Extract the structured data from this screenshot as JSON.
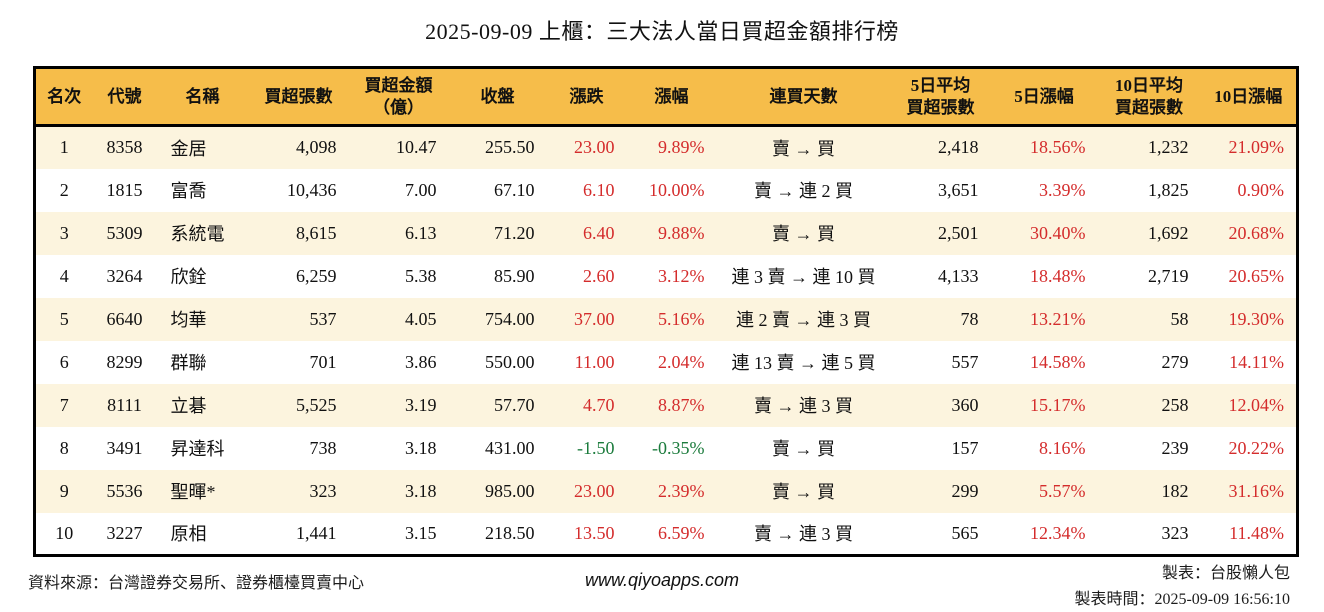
{
  "title": "2025-09-09 上櫃：三大法人當日買超金額排行榜",
  "colors": {
    "header_bg": "#F6BD4A",
    "row_alt_bg": "#FCF4DE",
    "up_red": "#D42C2C",
    "down_green": "#1B7B3C",
    "border": "#000000"
  },
  "chart_data": {
    "type": "table",
    "title": "2025-09-09 上櫃：三大法人當日買超金額排行榜",
    "columns": [
      "名次",
      "代號",
      "名稱",
      "買超張數",
      "買超金額\n（億）",
      "收盤",
      "漲跌",
      "漲幅",
      "連買天數",
      "5日平均\n買超張數",
      "5日漲幅",
      "10日平均\n買超張數",
      "10日漲幅"
    ],
    "rows": [
      {
        "rank": "1",
        "code": "8358",
        "name": "金居",
        "volume": "4,098",
        "amount": "10.47",
        "close": "255.50",
        "change": "23.00",
        "change_pct": "9.89%",
        "trend": "up",
        "streak": "賣 → 買",
        "avg5": "2,418",
        "pct5": "18.56%",
        "trend5": "up",
        "avg10": "1,232",
        "pct10": "21.09%",
        "trend10": "up"
      },
      {
        "rank": "2",
        "code": "1815",
        "name": "富喬",
        "volume": "10,436",
        "amount": "7.00",
        "close": "67.10",
        "change": "6.10",
        "change_pct": "10.00%",
        "trend": "up",
        "streak": "賣 → 連 2 買",
        "avg5": "3,651",
        "pct5": "3.39%",
        "trend5": "up",
        "avg10": "1,825",
        "pct10": "0.90%",
        "trend10": "up"
      },
      {
        "rank": "3",
        "code": "5309",
        "name": "系統電",
        "volume": "8,615",
        "amount": "6.13",
        "close": "71.20",
        "change": "6.40",
        "change_pct": "9.88%",
        "trend": "up",
        "streak": "賣 → 買",
        "avg5": "2,501",
        "pct5": "30.40%",
        "trend5": "up",
        "avg10": "1,692",
        "pct10": "20.68%",
        "trend10": "up"
      },
      {
        "rank": "4",
        "code": "3264",
        "name": "欣銓",
        "volume": "6,259",
        "amount": "5.38",
        "close": "85.90",
        "change": "2.60",
        "change_pct": "3.12%",
        "trend": "up",
        "streak": "連 3 賣 → 連 10 買",
        "avg5": "4,133",
        "pct5": "18.48%",
        "trend5": "up",
        "avg10": "2,719",
        "pct10": "20.65%",
        "trend10": "up"
      },
      {
        "rank": "5",
        "code": "6640",
        "name": "均華",
        "volume": "537",
        "amount": "4.05",
        "close": "754.00",
        "change": "37.00",
        "change_pct": "5.16%",
        "trend": "up",
        "streak": "連 2 賣 → 連 3 買",
        "avg5": "78",
        "pct5": "13.21%",
        "trend5": "up",
        "avg10": "58",
        "pct10": "19.30%",
        "trend10": "up"
      },
      {
        "rank": "6",
        "code": "8299",
        "name": "群聯",
        "volume": "701",
        "amount": "3.86",
        "close": "550.00",
        "change": "11.00",
        "change_pct": "2.04%",
        "trend": "up",
        "streak": "連 13 賣 → 連 5 買",
        "avg5": "557",
        "pct5": "14.58%",
        "trend5": "up",
        "avg10": "279",
        "pct10": "14.11%",
        "trend10": "up"
      },
      {
        "rank": "7",
        "code": "8111",
        "name": "立碁",
        "volume": "5,525",
        "amount": "3.19",
        "close": "57.70",
        "change": "4.70",
        "change_pct": "8.87%",
        "trend": "up",
        "streak": "賣 → 連 3 買",
        "avg5": "360",
        "pct5": "15.17%",
        "trend5": "up",
        "avg10": "258",
        "pct10": "12.04%",
        "trend10": "up"
      },
      {
        "rank": "8",
        "code": "3491",
        "name": "昇達科",
        "volume": "738",
        "amount": "3.18",
        "close": "431.00",
        "change": "-1.50",
        "change_pct": "-0.35%",
        "trend": "down",
        "streak": "賣 → 買",
        "avg5": "157",
        "pct5": "8.16%",
        "trend5": "up",
        "avg10": "239",
        "pct10": "20.22%",
        "trend10": "up"
      },
      {
        "rank": "9",
        "code": "5536",
        "name": "聖暉*",
        "volume": "323",
        "amount": "3.18",
        "close": "985.00",
        "change": "23.00",
        "change_pct": "2.39%",
        "trend": "up",
        "streak": "賣 → 買",
        "avg5": "299",
        "pct5": "5.57%",
        "trend5": "up",
        "avg10": "182",
        "pct10": "31.16%",
        "trend10": "up"
      },
      {
        "rank": "10",
        "code": "3227",
        "name": "原相",
        "volume": "1,441",
        "amount": "3.15",
        "close": "218.50",
        "change": "13.50",
        "change_pct": "6.59%",
        "trend": "up",
        "streak": "賣 → 連 3 買",
        "avg5": "565",
        "pct5": "12.34%",
        "trend5": "up",
        "avg10": "323",
        "pct10": "11.48%",
        "trend10": "up"
      }
    ]
  },
  "footer": {
    "source": "資料來源：台灣證券交易所、證券櫃檯買賣中心",
    "website": "www.qiyoapps.com",
    "maker": "製表：台股懶人包",
    "generated_at": "製表時間：2025-09-09 16:56:10"
  }
}
